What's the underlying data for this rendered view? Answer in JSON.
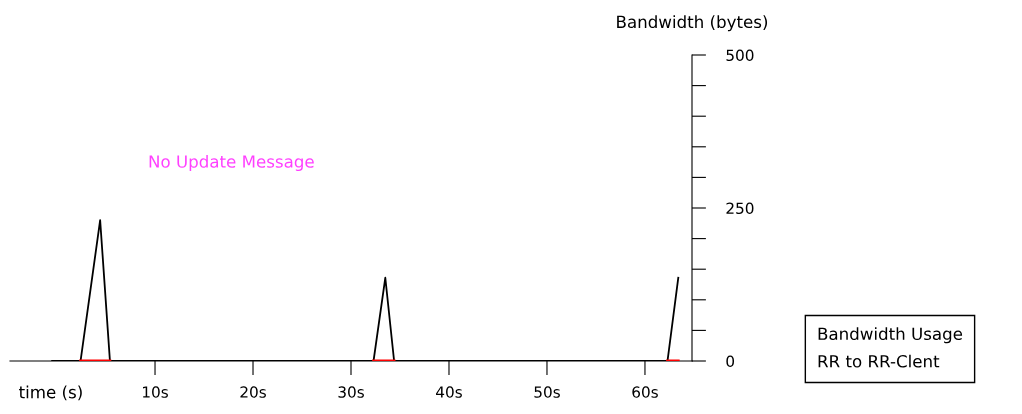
{
  "chart_data": {
    "type": "line",
    "xlabel": "time (s)",
    "ylabel": "Bandwidth (bytes)",
    "series": [
      {
        "color": "#000000",
        "x": [
          -0.5,
          2.4,
          4.4,
          5.4,
          32.3,
          33.5,
          34.4,
          62.3,
          63.4
        ],
        "values": [
          0,
          0,
          230,
          0,
          0,
          136,
          0,
          0,
          136
        ]
      },
      {
        "color": "#ff0000",
        "x": [
          2.4,
          5.4,
          5.41,
          32.3,
          34.4,
          34.41,
          62.3,
          63.4
        ],
        "values": [
          0,
          0,
          null,
          0,
          0,
          null,
          0,
          0
        ]
      }
    ],
    "xlim": [
      -4.8,
      64.8
    ],
    "ylim": [
      0,
      500
    ],
    "xticks": [
      {
        "value": 10,
        "label": "10s"
      },
      {
        "value": 20,
        "label": "20s"
      },
      {
        "value": 30,
        "label": "30s"
      },
      {
        "value": 40,
        "label": "40s"
      },
      {
        "value": 50,
        "label": "50s"
      },
      {
        "value": 60,
        "label": "60s"
      }
    ],
    "yticks": [
      0,
      {
        "value": 50,
        "label": null
      },
      {
        "value": 100,
        "label": null
      },
      {
        "value": 150,
        "label": null
      },
      {
        "value": 200,
        "label": null
      },
      250,
      {
        "value": 300,
        "label": null
      },
      {
        "value": 350,
        "label": null
      },
      {
        "value": 400,
        "label": null
      },
      {
        "value": 450,
        "label": null
      },
      500
    ],
    "annotations": [
      "No Update Message",
      "Bandwidth Usage\nRR to RR-Clent"
    ],
    "grid": false,
    "marker": "none",
    "line_style": "solid"
  }
}
